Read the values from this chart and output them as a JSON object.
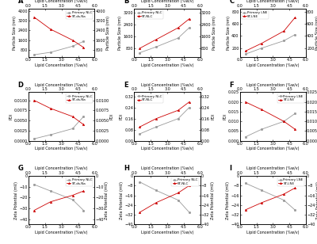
{
  "panels": [
    {
      "label": "A",
      "xlabel": "Lipid Concentration (%w/v)",
      "ylabel_left": "Particle Size (nm)",
      "ylabel_right": "Particle Size (nm)",
      "xtop_label": "Lipid Concentration (%w/v)",
      "series": [
        {
          "name": "Primary NLC",
          "color": "#999999",
          "marker": "o",
          "x": [
            0.5,
            2.0,
            4.0,
            5.0
          ],
          "y": [
            400,
            600,
            1100,
            1500
          ]
        },
        {
          "name": "ST-ds.Na",
          "color": "#cc0000",
          "marker": "^",
          "x": [
            0.5,
            2.0,
            4.0,
            5.0
          ],
          "y": [
            3500,
            2500,
            1600,
            1000
          ]
        }
      ],
      "ylim": [
        200,
        4200
      ],
      "xlim": [
        0.0,
        6.0
      ],
      "legend_loc": "upper right"
    },
    {
      "label": "B",
      "xlabel": "Lipid Concentration (%w/v)",
      "ylabel_left": "Particle Size (nm)",
      "ylabel_right": "Particle Size (nm)",
      "xtop_label": "Lipid Concentration (%w/v)",
      "series": [
        {
          "name": "Primary NLC",
          "color": "#999999",
          "marker": "o",
          "x": [
            0.5,
            2.0,
            4.0,
            5.0
          ],
          "y": [
            500,
            900,
            1500,
            2200
          ]
        },
        {
          "name": "ST-NLC",
          "color": "#cc0000",
          "marker": "^",
          "x": [
            0.5,
            2.0,
            4.0,
            5.0
          ],
          "y": [
            800,
            1400,
            2200,
            2800
          ]
        }
      ],
      "ylim": [
        200,
        3500
      ],
      "xlim": [
        0.0,
        6.0
      ],
      "legend_loc": "upper left"
    },
    {
      "label": "C",
      "xlabel": "Lipid Concentration (%w/v)",
      "ylabel_left": "Particle Size (nm)",
      "ylabel_right": "Particle Size (nm)",
      "xtop_label": "Lipid Concentration (%w/v)",
      "series": [
        {
          "name": "Primary LNE",
          "color": "#999999",
          "marker": "o",
          "x": [
            0.5,
            2.0,
            4.0,
            5.0
          ],
          "y": [
            100,
            200,
            320,
            420
          ]
        },
        {
          "name": "ST-LNE",
          "color": "#cc0000",
          "marker": "^",
          "x": [
            0.5,
            2.0,
            4.0,
            5.0
          ],
          "y": [
            150,
            280,
            480,
            700
          ]
        }
      ],
      "ylim": [
        50,
        850
      ],
      "xlim": [
        0.0,
        6.0
      ],
      "legend_loc": "upper left"
    },
    {
      "label": "D",
      "xlabel": "Lipid Concentration (%w/v)",
      "ylabel_left": "PDI",
      "ylabel_right": "PDI",
      "xtop_label": "Lipid Concentration (%w/v)",
      "series": [
        {
          "name": "Primary NLC",
          "color": "#999999",
          "marker": "o",
          "x": [
            0.5,
            2.0,
            4.0,
            5.0
          ],
          "y": [
            0.0005,
            0.0015,
            0.003,
            0.006
          ]
        },
        {
          "name": "ST-ds.Na",
          "color": "#cc0000",
          "marker": "^",
          "x": [
            0.5,
            2.0,
            4.0,
            5.0
          ],
          "y": [
            0.01,
            0.008,
            0.006,
            0.004
          ]
        }
      ],
      "ylim": [
        0.0,
        0.012
      ],
      "xlim": [
        0.0,
        6.0
      ],
      "legend_loc": "upper right"
    },
    {
      "label": "E",
      "xlabel": "Lipid Concentration (%w/v)",
      "ylabel_left": "PDI",
      "ylabel_right": "PDI",
      "xtop_label": "Lipid Concentration (%w/v)",
      "series": [
        {
          "name": "Primary NLC",
          "color": "#999999",
          "marker": "o",
          "x": [
            0.5,
            2.0,
            4.0,
            5.0
          ],
          "y": [
            0.05,
            0.1,
            0.16,
            0.24
          ]
        },
        {
          "name": "ST-NLC",
          "color": "#cc0000",
          "marker": "^",
          "x": [
            0.5,
            2.0,
            4.0,
            5.0
          ],
          "y": [
            0.1,
            0.16,
            0.22,
            0.28
          ]
        }
      ],
      "ylim": [
        0.0,
        0.35
      ],
      "xlim": [
        0.0,
        6.0
      ],
      "legend_loc": "upper left"
    },
    {
      "label": "F",
      "xlabel": "Lipid Concentration (%w/v)",
      "ylabel_left": "PDI",
      "ylabel_right": "PDI",
      "xtop_label": "Lipid Concentration (%w/v)",
      "series": [
        {
          "name": "Primary LNE",
          "color": "#999999",
          "marker": "o",
          "x": [
            0.5,
            2.0,
            4.0,
            5.0
          ],
          "y": [
            0.002,
            0.006,
            0.01,
            0.014
          ]
        },
        {
          "name": "ST-LNE",
          "color": "#cc0000",
          "marker": "^",
          "x": [
            0.5,
            2.0,
            4.0,
            5.0
          ],
          "y": [
            0.02,
            0.016,
            0.01,
            0.006
          ]
        }
      ],
      "ylim": [
        0.0,
        0.025
      ],
      "xlim": [
        0.0,
        6.0
      ],
      "legend_loc": "upper right"
    },
    {
      "label": "G",
      "xlabel": "Lipid Concentration (%w/v)",
      "ylabel_left": "Zeta Potential (mV)",
      "ylabel_right": "Zeta Potential (mV)",
      "xtop_label": "Lipid Concentration (%w/v)",
      "series": [
        {
          "name": "Primary NLC",
          "color": "#999999",
          "marker": "o",
          "x": [
            0.5,
            2.0,
            4.0,
            5.0
          ],
          "y": [
            -8,
            -14,
            -22,
            -32
          ]
        },
        {
          "name": "ST-ds.Na",
          "color": "#cc0000",
          "marker": "^",
          "x": [
            0.5,
            2.0,
            4.0,
            5.0
          ],
          "y": [
            -32,
            -24,
            -18,
            -14
          ]
        }
      ],
      "ylim": [
        -45,
        0
      ],
      "xlim": [
        0.0,
        6.0
      ],
      "legend_loc": "upper right"
    },
    {
      "label": "H",
      "xlabel": "Lipid Concentration (%w/v)",
      "ylabel_left": "Zeta Potential (mV)",
      "ylabel_right": "Zeta Potential (mV)",
      "xtop_label": "Lipid Concentration (%w/v)",
      "series": [
        {
          "name": "Primary NLC",
          "color": "#999999",
          "marker": "o",
          "x": [
            0.5,
            2.0,
            4.0,
            5.0
          ],
          "y": [
            -5,
            -12,
            -20,
            -30
          ]
        },
        {
          "name": "ST-NLC",
          "color": "#cc0000",
          "marker": "^",
          "x": [
            0.5,
            2.0,
            4.0,
            5.0
          ],
          "y": [
            -30,
            -22,
            -14,
            -8
          ]
        }
      ],
      "ylim": [
        -40,
        0
      ],
      "xlim": [
        0.0,
        6.0
      ],
      "legend_loc": "upper right"
    },
    {
      "label": "I",
      "xlabel": "Lipid Concentration (%w/v)",
      "ylabel_left": "Zeta Potential (mV)",
      "ylabel_right": "Zeta Potential (mV)",
      "xtop_label": "Lipid Concentration (%w/v)",
      "series": [
        {
          "name": "Primary LNE",
          "color": "#999999",
          "marker": "o",
          "x": [
            0.5,
            2.0,
            4.0,
            5.0
          ],
          "y": [
            -6,
            -12,
            -20,
            -28
          ]
        },
        {
          "name": "ST-LNE",
          "color": "#cc0000",
          "marker": "^",
          "x": [
            0.5,
            2.0,
            4.0,
            5.0
          ],
          "y": [
            -28,
            -22,
            -15,
            -10
          ]
        }
      ],
      "ylim": [
        -40,
        0
      ],
      "xlim": [
        0.0,
        6.0
      ],
      "legend_loc": "upper right"
    }
  ],
  "bg_color": "#ffffff",
  "tick_fontsize": 3.5,
  "label_fontsize": 3.5,
  "legend_fontsize": 3.0,
  "panel_label_fontsize": 6,
  "linewidth": 0.6,
  "markersize": 1.8
}
